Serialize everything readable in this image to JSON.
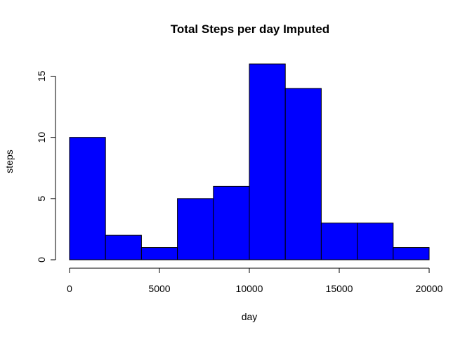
{
  "chart_data": {
    "type": "bar",
    "title": "Total Steps per day Imputed",
    "xlabel": "day",
    "ylabel": "steps",
    "bins": [
      {
        "x0": 0,
        "x1": 2000,
        "count": 10
      },
      {
        "x0": 2000,
        "x1": 4000,
        "count": 2
      },
      {
        "x0": 4000,
        "x1": 6000,
        "count": 1
      },
      {
        "x0": 6000,
        "x1": 8000,
        "count": 5
      },
      {
        "x0": 8000,
        "x1": 10000,
        "count": 6
      },
      {
        "x0": 10000,
        "x1": 12000,
        "count": 16
      },
      {
        "x0": 12000,
        "x1": 14000,
        "count": 14
      },
      {
        "x0": 14000,
        "x1": 16000,
        "count": 3
      },
      {
        "x0": 16000,
        "x1": 18000,
        "count": 3
      },
      {
        "x0": 18000,
        "x1": 20000,
        "count": 1
      }
    ],
    "xlim": [
      0,
      20000
    ],
    "ylim": [
      0,
      16
    ],
    "x_ticks": [
      0,
      5000,
      10000,
      15000,
      20000
    ],
    "y_ticks": [
      0,
      5,
      10,
      15
    ],
    "bar_color": "#0000FF",
    "bar_border_color": "#000000",
    "grid": false
  }
}
